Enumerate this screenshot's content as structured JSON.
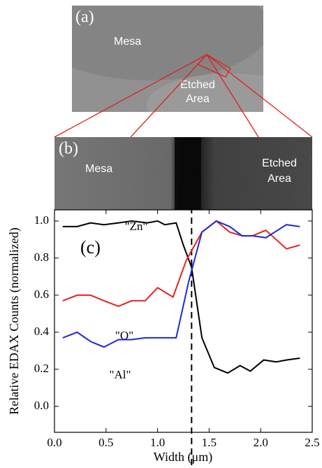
{
  "panel_a": {
    "label": "(a)",
    "mesa": "Mesa",
    "etched": [
      "Etched",
      "Area"
    ]
  },
  "panel_b": {
    "label": "(b)",
    "mesa": "Mesa",
    "etched": [
      "Etched",
      "Area"
    ]
  },
  "chart_data": {
    "type": "line",
    "panel_label": "(c)",
    "x_label": "Width (μm)",
    "y_label": "Relative EDAX Counts (normalized)",
    "xlim": [
      0,
      2.5
    ],
    "ylim": [
      -0.14,
      1.06
    ],
    "xticks": [
      {
        "value": 0,
        "label": "0.0"
      },
      0.5,
      {
        "value": 1,
        "label": "1.0"
      },
      1.5,
      {
        "value": 2,
        "label": "2.0"
      },
      2.5
    ],
    "yticks": [
      {
        "value": 0,
        "label": "0.0"
      },
      0.2,
      0.4,
      0.6,
      0.8,
      {
        "value": 1,
        "label": "1.0"
      }
    ],
    "vline": 1.33,
    "series": [
      {
        "name": "\"Zn\"",
        "color": "#000000",
        "x": [
          0.08,
          0.22,
          0.35,
          0.48,
          0.62,
          0.75,
          0.9,
          1.0,
          1.07,
          1.18,
          1.25,
          1.33,
          1.43,
          1.55,
          1.68,
          1.8,
          1.9,
          2.03,
          2.15,
          2.25,
          2.38
        ],
        "values": [
          0.97,
          0.97,
          0.99,
          0.98,
          0.99,
          1.0,
          0.99,
          1.0,
          0.98,
          0.99,
          0.87,
          0.75,
          0.37,
          0.21,
          0.18,
          0.22,
          0.19,
          0.25,
          0.24,
          0.25,
          0.26
        ]
      },
      {
        "name": "\"O\"",
        "color": "#e8231b",
        "x": [
          0.08,
          0.22,
          0.35,
          0.48,
          0.62,
          0.75,
          0.88,
          1.0,
          1.15,
          1.28,
          1.43,
          1.57,
          1.7,
          1.82,
          1.92,
          2.05,
          2.25,
          2.38
        ],
        "values": [
          0.57,
          0.6,
          0.6,
          0.57,
          0.54,
          0.57,
          0.57,
          0.64,
          0.59,
          0.79,
          0.94,
          1.0,
          0.94,
          0.92,
          0.92,
          0.95,
          0.85,
          0.87
        ]
      },
      {
        "name": "\"Al\"",
        "color": "#1c2bd6",
        "x": [
          0.08,
          0.22,
          0.35,
          0.48,
          0.62,
          0.75,
          0.88,
          1.0,
          1.18,
          1.3,
          1.43,
          1.57,
          1.7,
          1.82,
          1.92,
          2.05,
          2.25,
          2.38
        ],
        "values": [
          0.37,
          0.4,
          0.35,
          0.32,
          0.36,
          0.36,
          0.37,
          0.37,
          0.37,
          0.67,
          0.94,
          1.0,
          0.97,
          0.92,
          0.92,
          0.91,
          0.98,
          0.97
        ]
      }
    ]
  }
}
